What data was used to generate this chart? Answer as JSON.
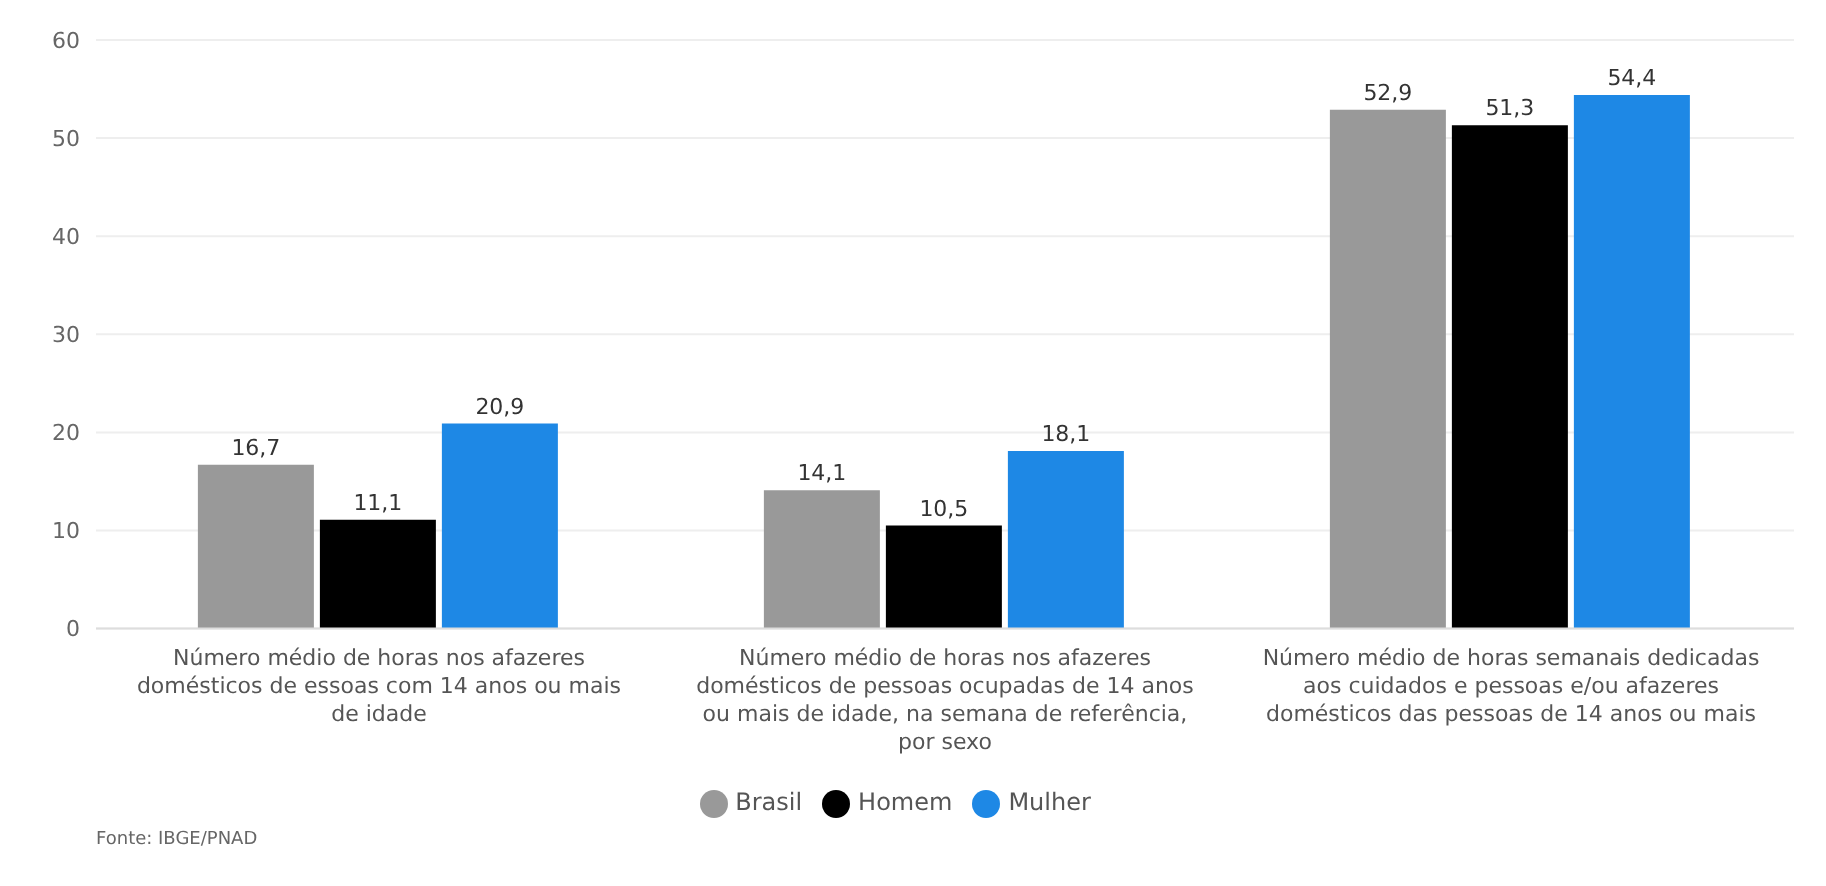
{
  "chart_data": {
    "type": "bar",
    "categories": [
      "Número médio de horas nos afazeres domésticos de essoas com 14 anos ou mais de idade",
      "Número médio de horas nos afazeres domésticos de pessoas ocupadas de 14 anos ou mais de idade, na semana de referência, por sexo",
      "Número médio de horas semanais dedicadas aos cuidados e pessoas e/ou afazeres domésticos das pessoas de 14 anos ou mais"
    ],
    "series": [
      {
        "name": "Brasil",
        "color": "#999999",
        "values": [
          16.7,
          14.1,
          52.9
        ],
        "value_labels": [
          "16,7",
          "14,1",
          "52,9"
        ]
      },
      {
        "name": "Homem",
        "color": "#000000",
        "values": [
          11.1,
          10.5,
          51.3
        ],
        "value_labels": [
          "11,1",
          "10,5",
          "51,3"
        ]
      },
      {
        "name": "Mulher",
        "color": "#1e88e5",
        "values": [
          20.9,
          18.1,
          54.4
        ],
        "value_labels": [
          "20,9",
          "18,1",
          "54,4"
        ]
      }
    ],
    "ylim": [
      0,
      60
    ],
    "yticks": [
      0,
      10,
      20,
      30,
      40,
      50,
      60
    ],
    "grid": "y",
    "legend": "bottom",
    "annotations": [
      "Fonte: IBGE/PNAD"
    ]
  }
}
